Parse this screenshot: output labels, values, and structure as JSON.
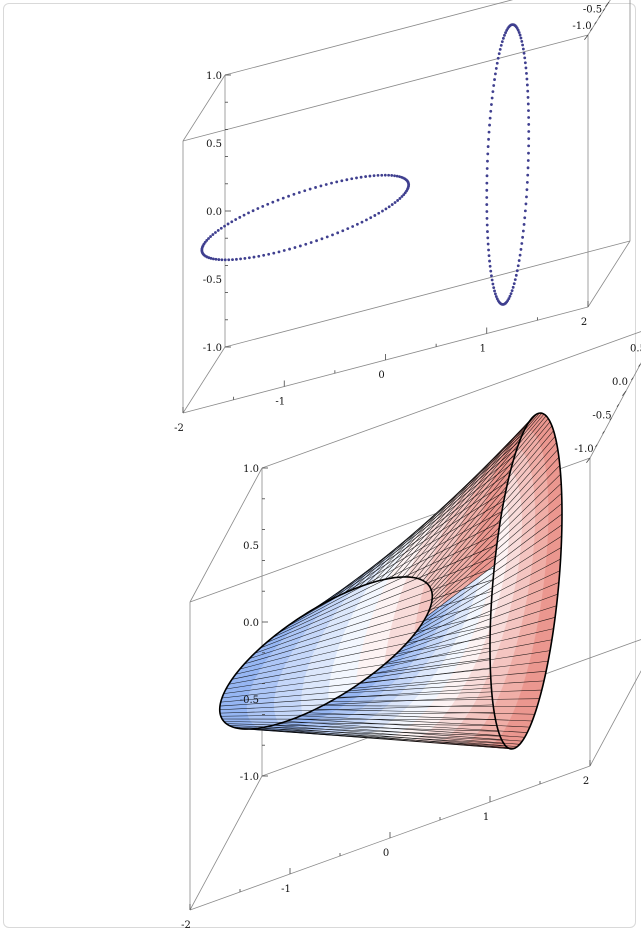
{
  "chart_data": [
    {
      "type": "scatter",
      "title": "",
      "description_series": [
        {
          "curve": "circle in x-y plane",
          "center": [
            -1,
            0,
            0
          ],
          "radius": 1,
          "points": 120,
          "color": "#3f3f8f"
        },
        {
          "curve": "circle in y-z plane",
          "center": [
            1,
            0,
            0
          ],
          "radius": 1,
          "points": 120,
          "color": "#3f3f8f"
        }
      ],
      "axes": {
        "x": {
          "range": [
            -2,
            2
          ],
          "ticks": [
            "-2",
            "-1",
            "0",
            "1",
            "2"
          ]
        },
        "y": {
          "range": [
            -1.0,
            1.0
          ],
          "ticks": [
            "-1.0",
            "-0.5",
            "0.0",
            "0.5",
            "1.0"
          ]
        },
        "z": {
          "range": [
            -1.0,
            1.0
          ],
          "ticks": [
            "-1.0",
            "-0.5",
            "0.0",
            "0.5",
            "1.0"
          ]
        }
      }
    },
    {
      "type": "surface",
      "title": "",
      "surface": {
        "from_curve": "circle in x-y plane",
        "to_curve": "circle in y-z plane",
        "gradient": [
          "#8aaef2",
          "#ffffff",
          "#e98b82"
        ],
        "mesh_color": "#000000"
      },
      "axes": {
        "x": {
          "range": [
            -2,
            2
          ],
          "ticks": [
            "-2",
            "-1",
            "0",
            "1",
            "2"
          ]
        },
        "y": {
          "range": [
            -1.0,
            1.0
          ],
          "ticks": [
            "-1.0",
            "-0.5",
            "0.0",
            "0.5",
            "1.0"
          ]
        },
        "z": {
          "range": [
            -1.0,
            1.0
          ],
          "ticks": [
            "-1.0",
            "-0.5",
            "0.0",
            "0.5",
            "1.0"
          ]
        }
      }
    }
  ]
}
